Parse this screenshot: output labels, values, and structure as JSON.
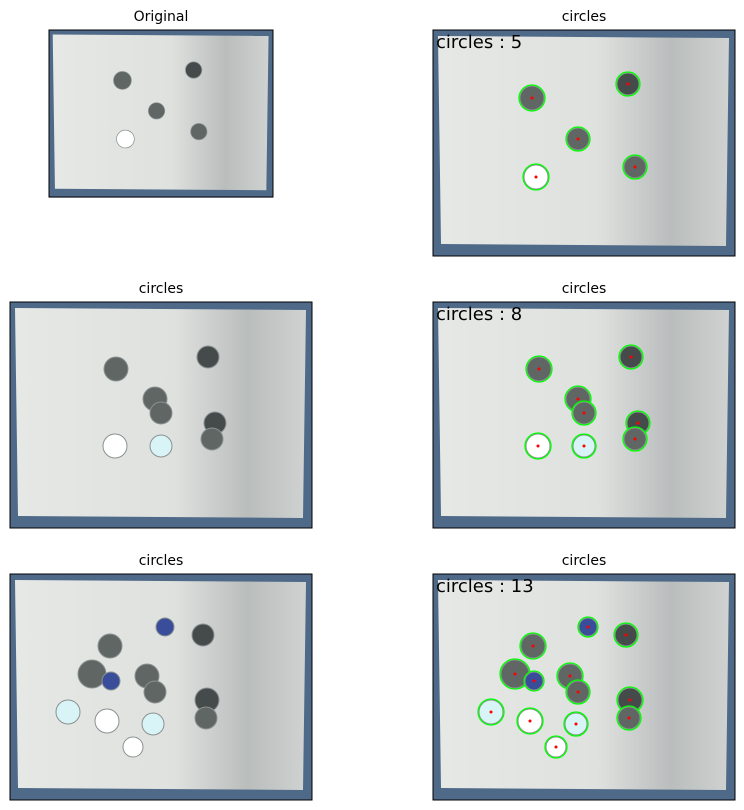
{
  "panels": [
    {
      "title": "Original"
    },
    {
      "title": "circles",
      "label": "circles : 5"
    },
    {
      "title": "circles"
    },
    {
      "title": "circles",
      "label": "circles : 8"
    },
    {
      "title": "circles"
    },
    {
      "title": "circles",
      "label": "circles : 13"
    }
  ]
}
